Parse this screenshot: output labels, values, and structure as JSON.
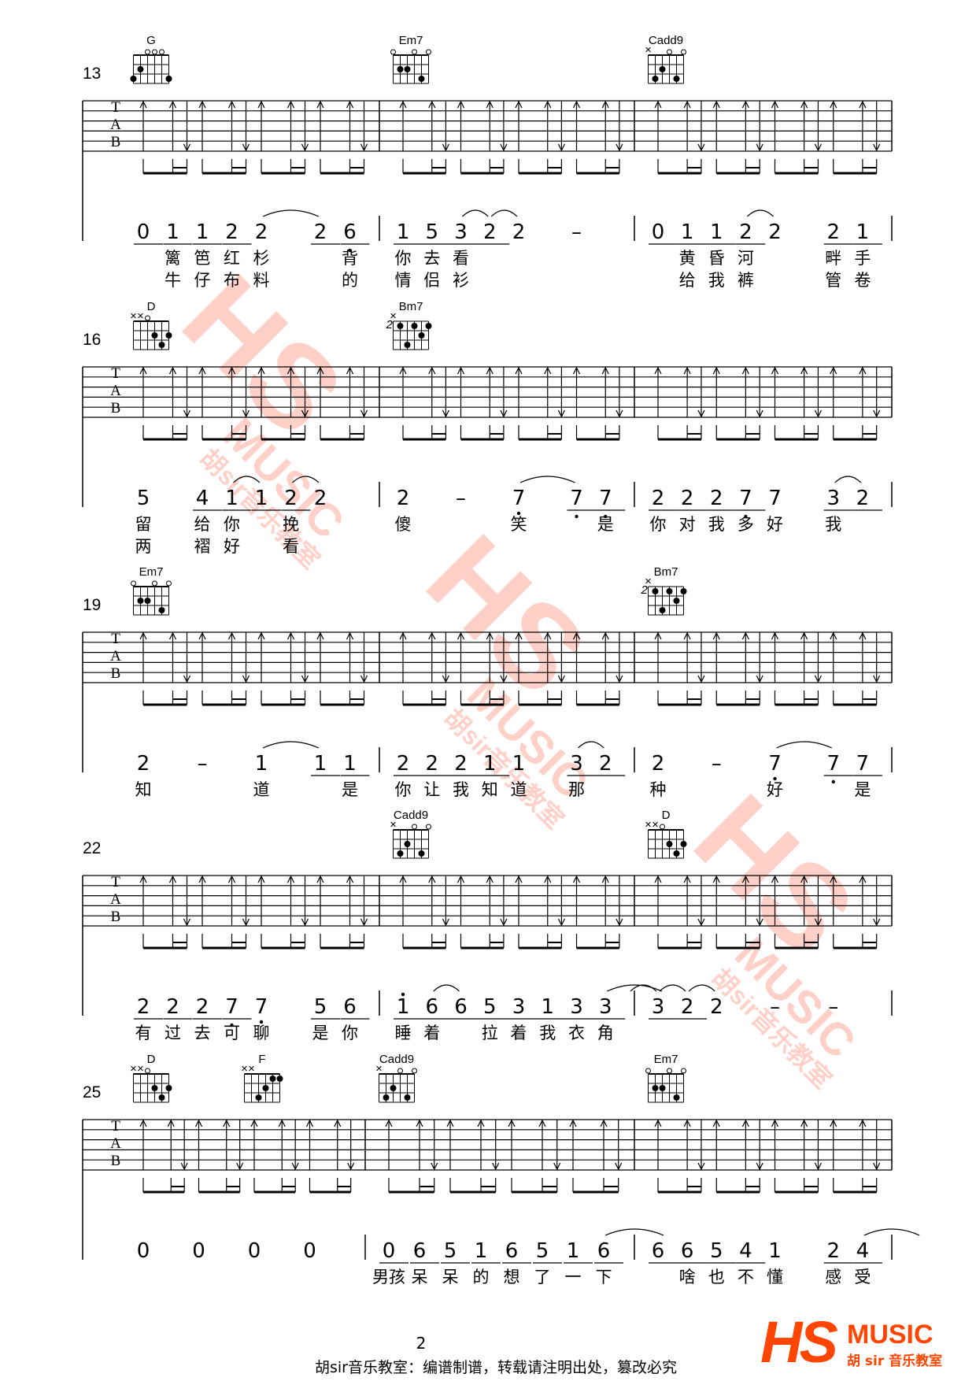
{
  "page_number": "2",
  "copyright": "胡sir音乐教室：编谱制谱，转载请注明出处，篡改必究",
  "logo": {
    "letters": "HS",
    "word": "MUSIC",
    "sub": "胡 sir 音乐教室",
    "color": "#ff4500"
  },
  "watermark": {
    "letters": "HS",
    "word": "MUSIC",
    "sub": "胡sir音乐教室",
    "color": "#ff5a3c"
  },
  "tab_letters": [
    "T",
    "A",
    "B"
  ],
  "chord_shapes": {
    "G": {
      "frets": [
        "3",
        "2",
        "0",
        "0",
        "0",
        "3"
      ],
      "base": 1
    },
    "Em7": {
      "frets": [
        "0",
        "2",
        "2",
        "0",
        "3",
        "0"
      ],
      "base": 1
    },
    "Cadd9": {
      "frets": [
        "x",
        "3",
        "2",
        "0",
        "3",
        "0"
      ],
      "base": 1
    },
    "D": {
      "frets": [
        "x",
        "x",
        "0",
        "2",
        "3",
        "2"
      ],
      "base": 1
    },
    "Bm7": {
      "frets": [
        "x",
        "2",
        "4",
        "2",
        "3",
        "2"
      ],
      "base": 2
    },
    "F": {
      "frets": [
        "x",
        "x",
        "3",
        "2",
        "1",
        "1"
      ],
      "base": 1
    }
  },
  "systems": [
    {
      "number": "13",
      "measures": [
        {
          "chords": [
            {
              "name": "G",
              "beat": 0
            }
          ],
          "notes": [
            "_0",
            "_1",
            "_1",
            "_2",
            "2",
            "",
            "_2",
            "_6,"
          ],
          "ties": [
            [
              4,
              6
            ]
          ],
          "lyrics": [
            [
              "",
              "篱",
              "笆",
              "红",
              "杉",
              "",
              "",
              "背"
            ],
            [
              "",
              "牛",
              "仔",
              "布",
              "料",
              "",
              "",
              "的"
            ]
          ]
        },
        {
          "chords": [
            {
              "name": "Em7",
              "beat": 0
            }
          ],
          "notes": [
            "_1",
            "_5",
            "_3",
            "_2",
            "2",
            "",
            "–",
            ""
          ],
          "ties": [
            [
              2,
              3
            ],
            [
              3,
              4
            ]
          ],
          "lyrics": [
            [
              "你",
              "去",
              "看",
              "",
              "",
              "",
              "",
              ""
            ],
            [
              "情",
              "侣",
              "衫",
              "",
              "",
              "",
              "",
              ""
            ]
          ]
        },
        {
          "chords": [
            {
              "name": "Cadd9",
              "beat": 0
            }
          ],
          "notes": [
            "_0",
            "_1",
            "_1",
            "_2",
            "2",
            "",
            "_2",
            "_1"
          ],
          "ties": [
            [
              3,
              4
            ]
          ],
          "lyrics": [
            [
              "",
              "黄",
              "昏",
              "河",
              "",
              "",
              "畔",
              "手"
            ],
            [
              "",
              "给",
              "我",
              "裤",
              "",
              "",
              "管",
              "卷"
            ]
          ]
        }
      ]
    },
    {
      "number": "16",
      "measures": [
        {
          "chords": [
            {
              "name": "D",
              "beat": 0
            }
          ],
          "notes": [
            "5",
            "",
            "_4",
            "_1",
            "_1",
            "_2",
            "2",
            ""
          ],
          "ties": [
            [
              3,
              4
            ],
            [
              5,
              6
            ]
          ],
          "lyrics": [
            [
              "留",
              "",
              "给",
              "你",
              "",
              "挽",
              "",
              ""
            ],
            [
              "两",
              "",
              "褶",
              "好",
              "",
              "看",
              "",
              ""
            ]
          ]
        },
        {
          "chords": [
            {
              "name": "Bm7",
              "beat": 0
            }
          ],
          "notes": [
            "2",
            "",
            "–",
            "",
            "7,",
            "",
            "_7,",
            "_7,"
          ],
          "ties": [
            [
              4,
              6
            ]
          ],
          "lyrics": [
            [
              "傻",
              "",
              "",
              "",
              "笑",
              "",
              "",
              "是"
            ]
          ]
        },
        {
          "chords": [],
          "notes": [
            "_2",
            "_2",
            "_2",
            "_7,",
            "7",
            "",
            "_3",
            "_2"
          ],
          "ties": [
            [
              6,
              7
            ]
          ],
          "lyrics": [
            [
              "你",
              "对",
              "我",
              "多",
              "好",
              "",
              "我",
              ""
            ]
          ]
        }
      ]
    },
    {
      "number": "19",
      "measures": [
        {
          "chords": [
            {
              "name": "Em7",
              "beat": 0
            }
          ],
          "notes": [
            "2",
            "",
            "–",
            "",
            "1",
            "",
            "_1",
            "_1"
          ],
          "ties": [
            [
              4,
              6
            ]
          ],
          "lyrics": [
            [
              "知",
              "",
              "",
              "",
              "道",
              "",
              "",
              "是"
            ]
          ]
        },
        {
          "chords": [],
          "notes": [
            "_2",
            "_2",
            "_2",
            "_1",
            "1",
            "",
            "_3",
            "_2"
          ],
          "ties": [
            [
              6,
              7
            ]
          ],
          "lyrics": [
            [
              "你",
              "让",
              "我",
              "知",
              "道",
              "",
              "那",
              ""
            ]
          ]
        },
        {
          "chords": [
            {
              "name": "Bm7",
              "beat": 0
            }
          ],
          "notes": [
            "2",
            "",
            "–",
            "",
            "7,",
            "",
            "_7,",
            "_7"
          ],
          "ties": [
            [
              4,
              6
            ]
          ],
          "lyrics": [
            [
              "种",
              "",
              "",
              "",
              "好",
              "",
              "",
              "是"
            ]
          ]
        }
      ]
    },
    {
      "number": "22",
      "measures": [
        {
          "chords": [],
          "notes": [
            "_2",
            "_2",
            "_2",
            "_7,",
            "7,",
            "",
            "_5",
            "_6"
          ],
          "ties": [],
          "lyrics": [
            [
              "有",
              "过",
              "去",
              "可",
              "聊",
              "",
              "是",
              "你"
            ]
          ]
        },
        {
          "chords": [
            {
              "name": "Cadd9",
              "beat": 0
            }
          ],
          "notes": [
            "_1'",
            "_6",
            "_6",
            "_5",
            "_3",
            "_1",
            "_3",
            "_3"
          ],
          "ties": [
            [
              1,
              2
            ],
            [
              7,
              9
            ]
          ],
          "lyrics": [
            [
              "睡",
              "着",
              "",
              "拉",
              "着",
              "我",
              "衣",
              "角"
            ]
          ]
        },
        {
          "chords": [
            {
              "name": "D",
              "beat": 0
            }
          ],
          "notes": [
            "_3",
            "_2",
            "2",
            "",
            "–",
            "",
            "–",
            ""
          ],
          "ties": [
            [
              -1,
              0
            ],
            [
              0,
              1
            ],
            [
              1,
              2
            ]
          ],
          "lyrics": []
        }
      ]
    },
    {
      "number": "25",
      "measures": [
        {
          "chords": [
            {
              "name": "D",
              "beat": 0
            },
            {
              "name": "F",
              "beat": 2
            }
          ],
          "notes": [
            "0",
            "",
            "0",
            "",
            "0",
            "",
            "0",
            ""
          ],
          "ties": [],
          "lyrics": []
        },
        {
          "chords": [
            {
              "name": "Cadd9",
              "beat": 0
            }
          ],
          "notes": [
            "_0",
            "_6",
            "_5",
            "_1",
            "_6",
            "_5",
            "_1",
            "_6"
          ],
          "ties": [
            [
              7,
              9
            ]
          ],
          "lyrics": [
            [
              "男孩",
              "呆",
              "呆",
              "的",
              "想",
              "了",
              "一",
              "下"
            ]
          ]
        },
        {
          "chords": [
            {
              "name": "Em7",
              "beat": 0
            }
          ],
          "notes": [
            "_6",
            "_6",
            "_5",
            "_4",
            "1",
            "",
            "_2",
            "_4"
          ],
          "ties": [
            [
              7,
              9
            ]
          ],
          "lyrics": [
            [
              "",
              "啥",
              "也",
              "不",
              "懂",
              "",
              "感",
              "受"
            ]
          ]
        }
      ]
    }
  ]
}
